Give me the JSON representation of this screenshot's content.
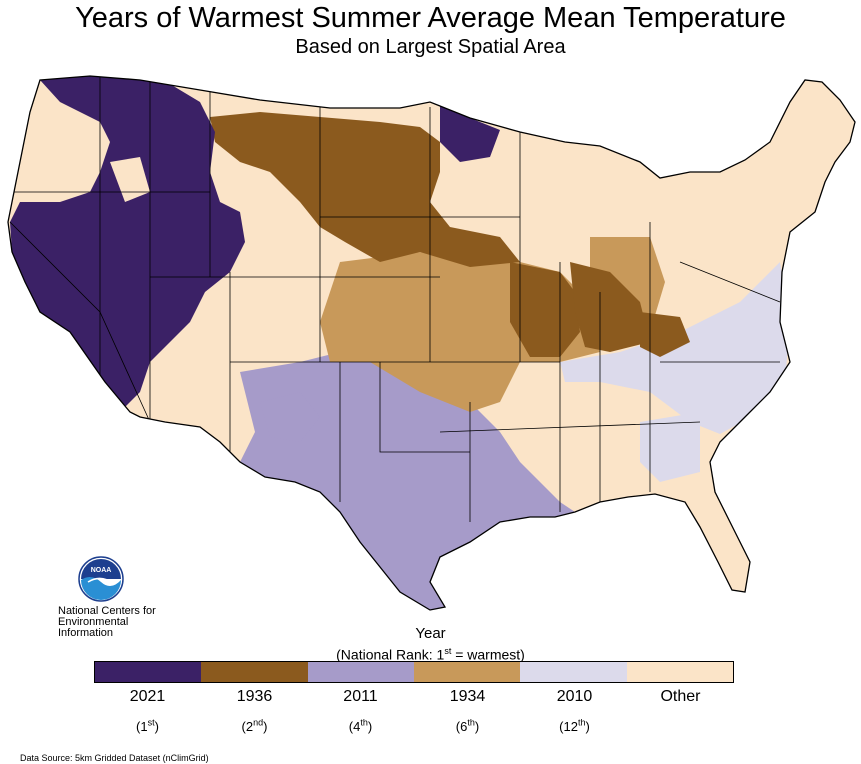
{
  "title": "Years of Warmest Summer Average Mean Temperature",
  "subtitle": "Based on Largest Spatial Area",
  "logo": {
    "text": "NOAA",
    "org_line1": "National Centers for",
    "org_line2": "Environmental",
    "org_line3": "Information"
  },
  "legend": {
    "title": "Year",
    "subtitle_prefix": "(National Rank: 1",
    "subtitle_sup": "st",
    "subtitle_suffix": " = warmest)",
    "items": [
      {
        "year": "2021",
        "rank_num": "1",
        "rank_sup": "st",
        "color": "#3b2166"
      },
      {
        "year": "1936",
        "rank_num": "2",
        "rank_sup": "nd",
        "color": "#8b5a1e"
      },
      {
        "year": "2011",
        "rank_num": "4",
        "rank_sup": "th",
        "color": "#a69bc9"
      },
      {
        "year": "1934",
        "rank_num": "6",
        "rank_sup": "th",
        "color": "#c8995a"
      },
      {
        "year": "2010",
        "rank_num": "12",
        "rank_sup": "th",
        "color": "#dcdaeb"
      },
      {
        "year": "Other",
        "rank_num": "",
        "rank_sup": "",
        "color": "#fbe4c8"
      }
    ]
  },
  "source": "Data Source: 5km Gridded Dataset (nClimGrid)"
}
